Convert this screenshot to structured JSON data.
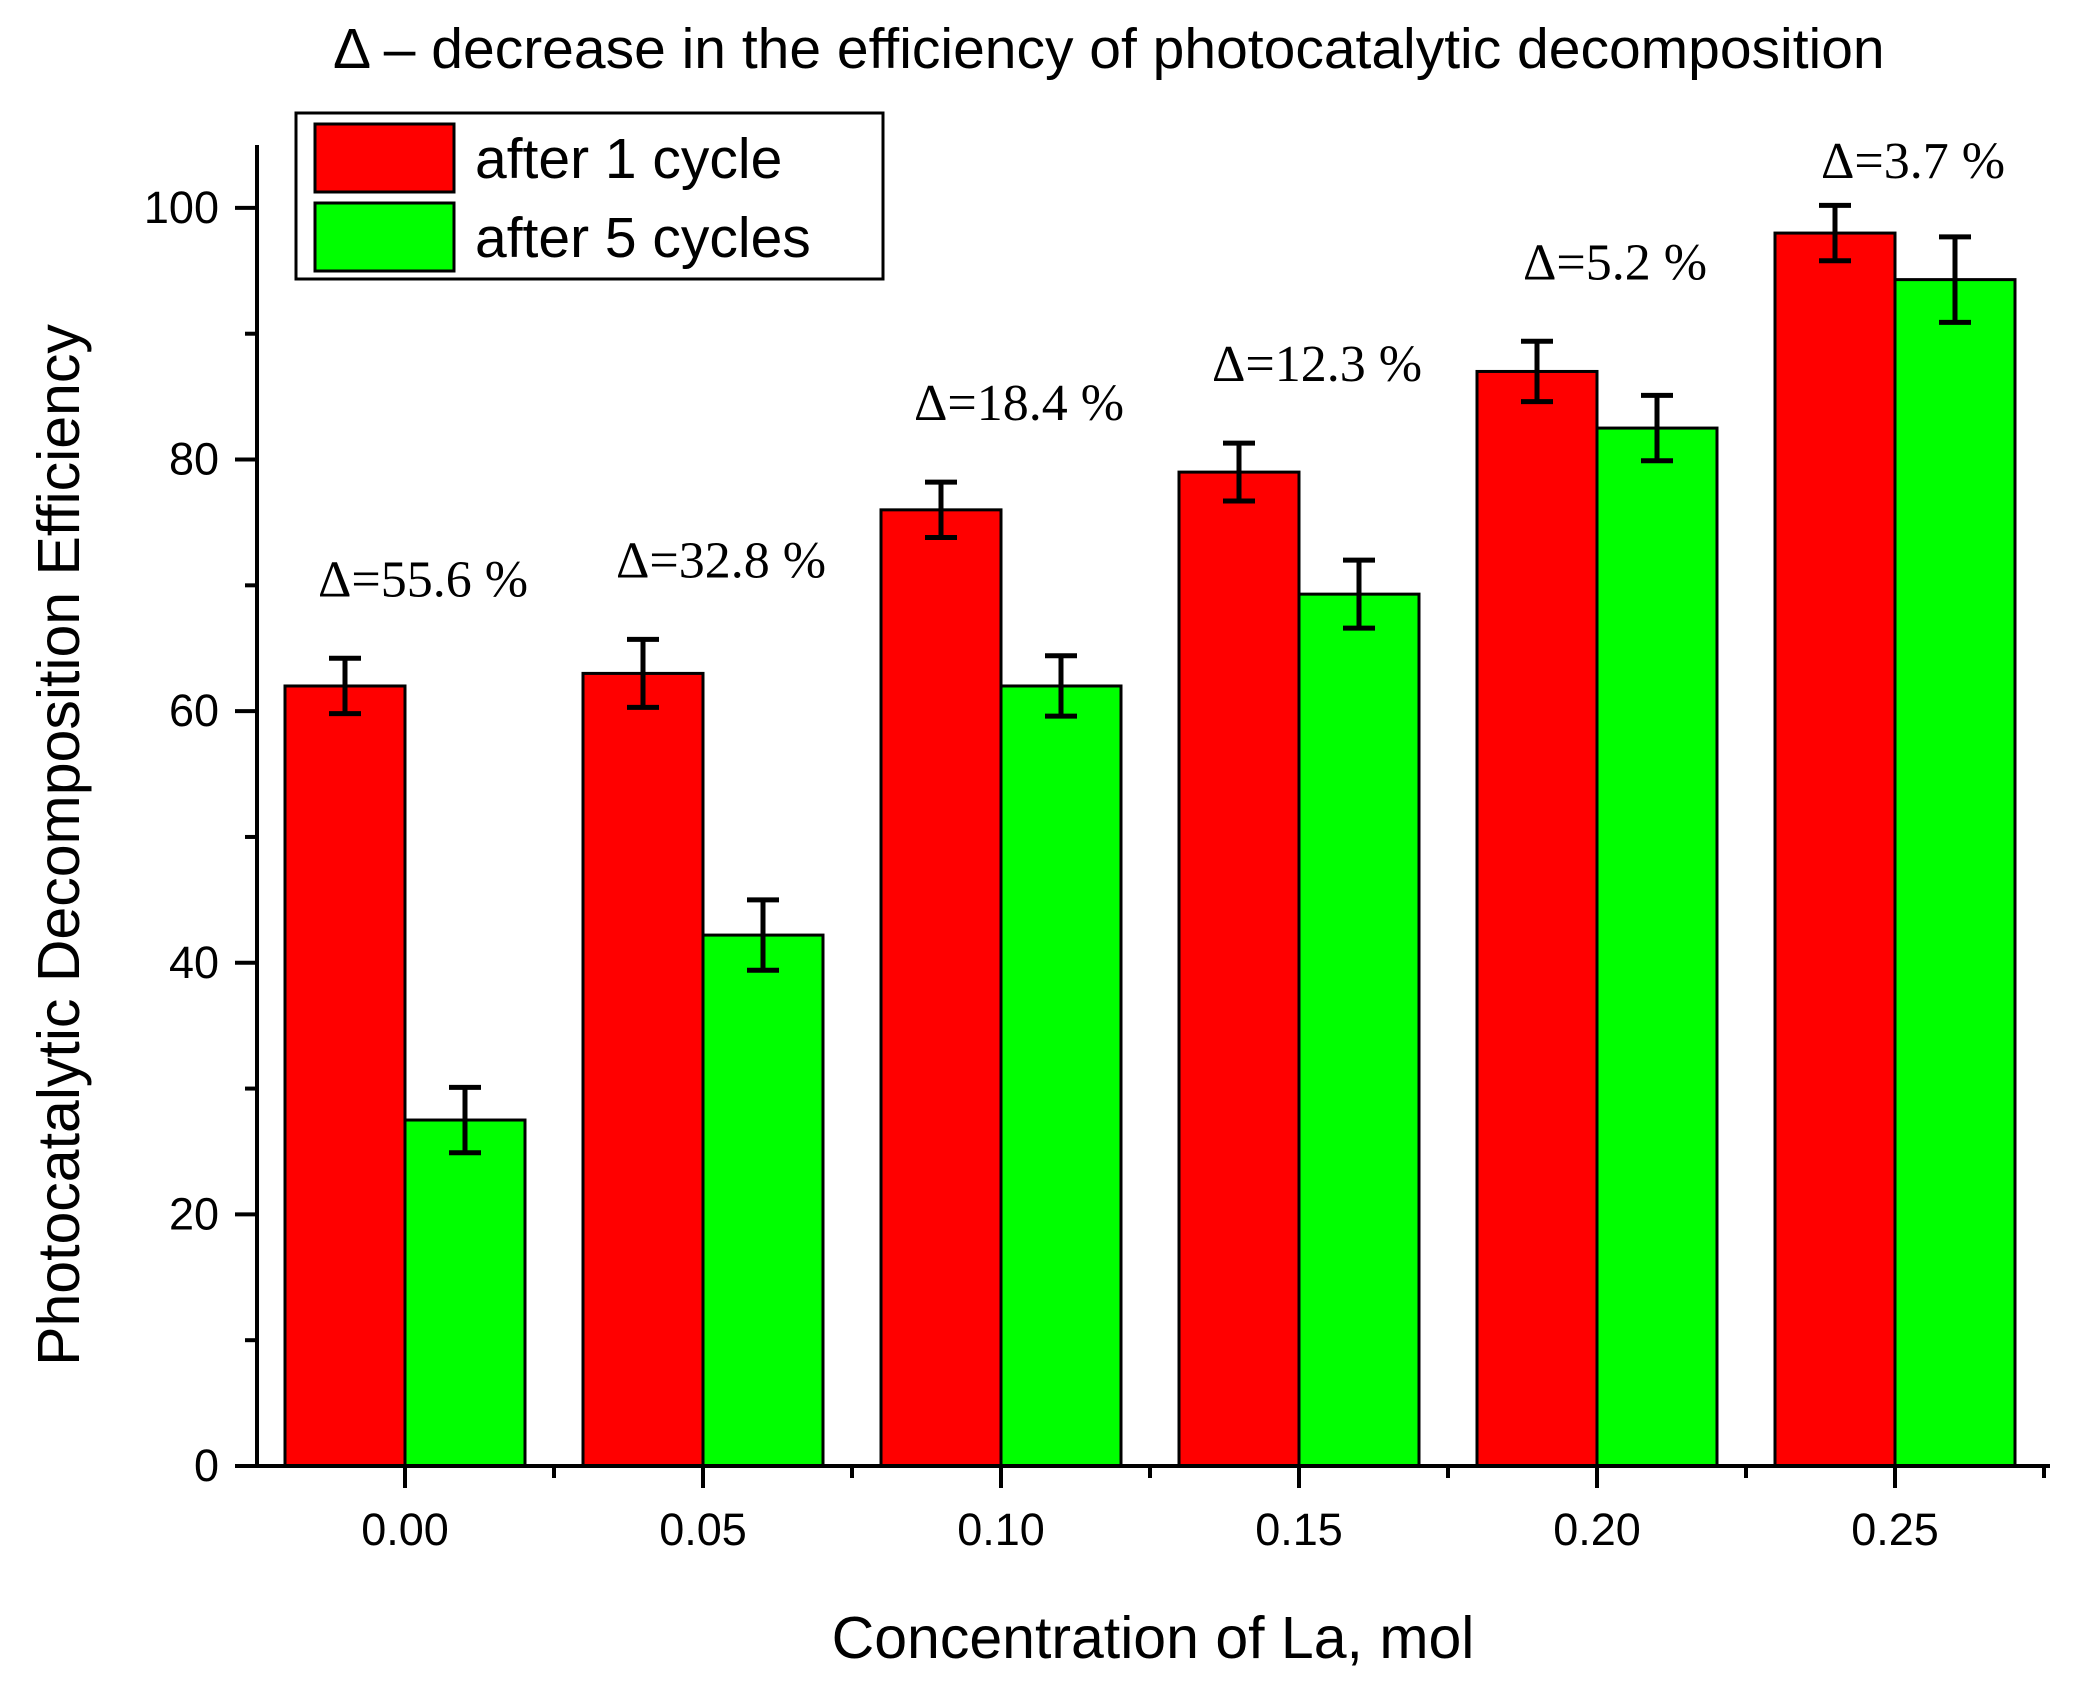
{
  "chart_data": {
    "type": "bar",
    "title": "Δ – decrease in the efficiency of photocatalytic decomposition",
    "xlabel": "Concentration of La, mol",
    "ylabel": "Photocatalytic Decomposition Efficiency",
    "categories": [
      "0.00",
      "0.05",
      "0.10",
      "0.15",
      "0.20",
      "0.25"
    ],
    "ylim": [
      0,
      105
    ],
    "yticks": [
      0,
      20,
      40,
      60,
      80,
      100
    ],
    "yticks_minor": [
      10,
      30,
      50,
      70,
      90
    ],
    "series": [
      {
        "name": "after 1 cycle",
        "color": "#ff0000",
        "values": [
          62,
          63,
          76,
          79,
          87,
          98
        ],
        "errors": [
          2.2,
          2.7,
          2.2,
          2.3,
          2.4,
          2.2
        ]
      },
      {
        "name": "after 5 cycles",
        "color": "#00ff00",
        "values": [
          27.5,
          42.2,
          62,
          69.3,
          82.5,
          94.3
        ],
        "errors": [
          2.6,
          2.8,
          2.4,
          2.7,
          2.6,
          3.4
        ]
      }
    ],
    "annotations": [
      "Δ=55.6 %",
      "Δ=32.8 %",
      "Δ=18.4 %",
      "Δ=12.3 %",
      "Δ=5.2 %",
      "Δ=3.7 %"
    ],
    "legend_position": "top-left",
    "grid": false
  }
}
